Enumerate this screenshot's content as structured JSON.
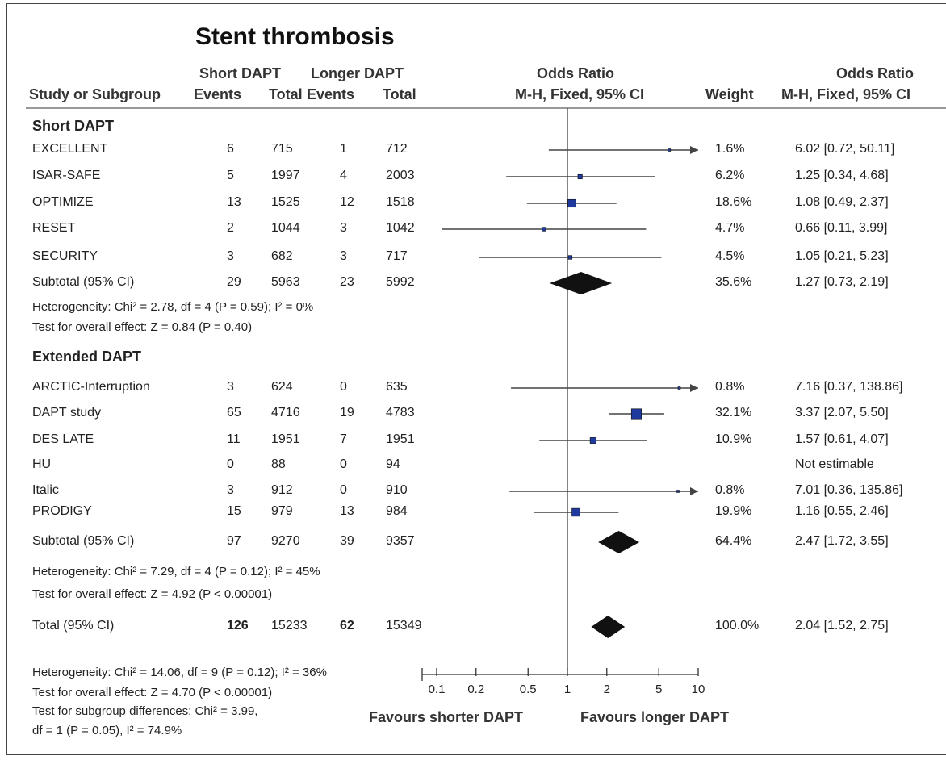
{
  "chart_data": {
    "type": "forest",
    "title": "Stent thrombosis",
    "headers": {
      "study": "Study or Subgroup",
      "group1": "Short DAPT",
      "group2": "Longer DAPT",
      "events": "Events",
      "total": "Total",
      "or_plot_1": "Odds Ratio",
      "or_plot_2": "M-H, Fixed, 95% CI",
      "weight": "Weight",
      "or_text_1": "Odds Ratio",
      "or_text_2": "M-H, Fixed, 95% CI"
    },
    "x_axis": {
      "scale": "log",
      "ticks": [
        0.1,
        0.2,
        0.5,
        1,
        2,
        5,
        10
      ],
      "tick_labels": [
        "0.1",
        "0.2",
        "0.5",
        "1",
        "2",
        "5",
        "10"
      ],
      "label_left": "Favours shorter DAPT",
      "label_right": "Favours longer DAPT"
    },
    "subgroups": [
      {
        "name": "Short DAPT",
        "studies": [
          {
            "name": "EXCELLENT",
            "e1": "6",
            "t1": "715",
            "e2": "1",
            "t2": "712",
            "or": 6.02,
            "lo": 0.72,
            "hi": 50.11,
            "weight": "1.6%",
            "ci_text": "6.02 [0.72, 50.11]",
            "arrow_right": true
          },
          {
            "name": "ISAR-SAFE",
            "e1": "5",
            "t1": "1997",
            "e2": "4",
            "t2": "2003",
            "or": 1.25,
            "lo": 0.34,
            "hi": 4.68,
            "weight": "6.2%",
            "ci_text": "1.25 [0.34, 4.68]"
          },
          {
            "name": "OPTIMIZE",
            "e1": "13",
            "t1": "1525",
            "e2": "12",
            "t2": "1518",
            "or": 1.08,
            "lo": 0.49,
            "hi": 2.37,
            "weight": "18.6%",
            "ci_text": "1.08 [0.49, 2.37]"
          },
          {
            "name": "RESET",
            "e1": "2",
            "t1": "1044",
            "e2": "3",
            "t2": "1042",
            "or": 0.66,
            "lo": 0.11,
            "hi": 3.99,
            "weight": "4.7%",
            "ci_text": "0.66 [0.11, 3.99]"
          },
          {
            "name": "SECURITY",
            "e1": "3",
            "t1": "682",
            "e2": "3",
            "t2": "717",
            "or": 1.05,
            "lo": 0.21,
            "hi": 5.23,
            "weight": "4.5%",
            "ci_text": "1.05 [0.21, 5.23]"
          }
        ],
        "subtotal": {
          "name": "Subtotal (95% CI)",
          "t1": "5963",
          "t2": "5992",
          "or": 1.27,
          "lo": 0.73,
          "hi": 2.19,
          "weight": "35.6%",
          "ci_text": "1.27 [0.73, 2.19]"
        },
        "total_events": {
          "e1": "29",
          "e2": "23"
        },
        "heterogeneity": "Heterogeneity: Chi² = 2.78, df = 4 (P = 0.59); I² = 0%",
        "overall_effect": "Test for overall effect: Z = 0.84 (P = 0.40)"
      },
      {
        "name": "Extended DAPT",
        "studies": [
          {
            "name": "ARCTIC-Interruption",
            "e1": "3",
            "t1": "624",
            "e2": "0",
            "t2": "635",
            "or": 7.16,
            "lo": 0.37,
            "hi": 138.86,
            "weight": "0.8%",
            "ci_text": "7.16 [0.37, 138.86]",
            "arrow_right": true
          },
          {
            "name": "DAPT study",
            "e1": "65",
            "t1": "4716",
            "e2": "19",
            "t2": "4783",
            "or": 3.37,
            "lo": 2.07,
            "hi": 5.5,
            "weight": "32.1%",
            "ci_text": "3.37 [2.07, 5.50]"
          },
          {
            "name": "DES LATE",
            "e1": "11",
            "t1": "1951",
            "e2": "7",
            "t2": "1951",
            "or": 1.57,
            "lo": 0.61,
            "hi": 4.07,
            "weight": "10.9%",
            "ci_text": "1.57 [0.61, 4.07]"
          },
          {
            "name": "HU",
            "e1": "0",
            "t1": "88",
            "e2": "0",
            "t2": "94",
            "or": null,
            "lo": null,
            "hi": null,
            "weight": "",
            "ci_text": "Not estimable"
          },
          {
            "name": "Italic",
            "e1": "3",
            "t1": "912",
            "e2": "0",
            "t2": "910",
            "or": 7.01,
            "lo": 0.36,
            "hi": 135.86,
            "weight": "0.8%",
            "ci_text": "7.01 [0.36, 135.86]",
            "arrow_right": true
          },
          {
            "name": "PRODIGY",
            "e1": "15",
            "t1": "979",
            "e2": "13",
            "t2": "984",
            "or": 1.16,
            "lo": 0.55,
            "hi": 2.46,
            "weight": "19.9%",
            "ci_text": "1.16 [0.55, 2.46]"
          }
        ],
        "subtotal": {
          "name": "Subtotal (95% CI)",
          "t1": "9270",
          "t2": "9357",
          "or": 2.47,
          "lo": 1.72,
          "hi": 3.55,
          "weight": "64.4%",
          "ci_text": "2.47 [1.72, 3.55]"
        },
        "total_events": {
          "e1": "97",
          "e2": "39"
        },
        "heterogeneity": "Heterogeneity: Chi² = 7.29, df = 4 (P = 0.12); I² = 45%",
        "overall_effect": "Test for overall effect: Z = 4.92 (P < 0.00001)"
      }
    ],
    "total": {
      "name": "Total (95% CI)",
      "t1": "15233",
      "t2": "15349",
      "or": 2.04,
      "lo": 1.52,
      "hi": 2.75,
      "weight": "100.0%",
      "ci_text": "2.04 [1.52, 2.75]"
    },
    "total_events": {
      "e1": "126",
      "e2": "62"
    },
    "footer": {
      "heterogeneity": "Heterogeneity: Chi² = 14.06, df = 9 (P = 0.12); I² = 36%",
      "overall_effect": "Test for overall effect: Z = 4.70 (P < 0.00001)",
      "subgroup_diff_1": "Test for subgroup differences: Chi² = 3.99,",
      "subgroup_diff_2": "df = 1 (P = 0.05), I² = 74.9%"
    },
    "colors": {
      "marker": "#1f3a9e",
      "diamond": "#111111",
      "ci_line": "#444444",
      "axis": "#333333"
    }
  }
}
